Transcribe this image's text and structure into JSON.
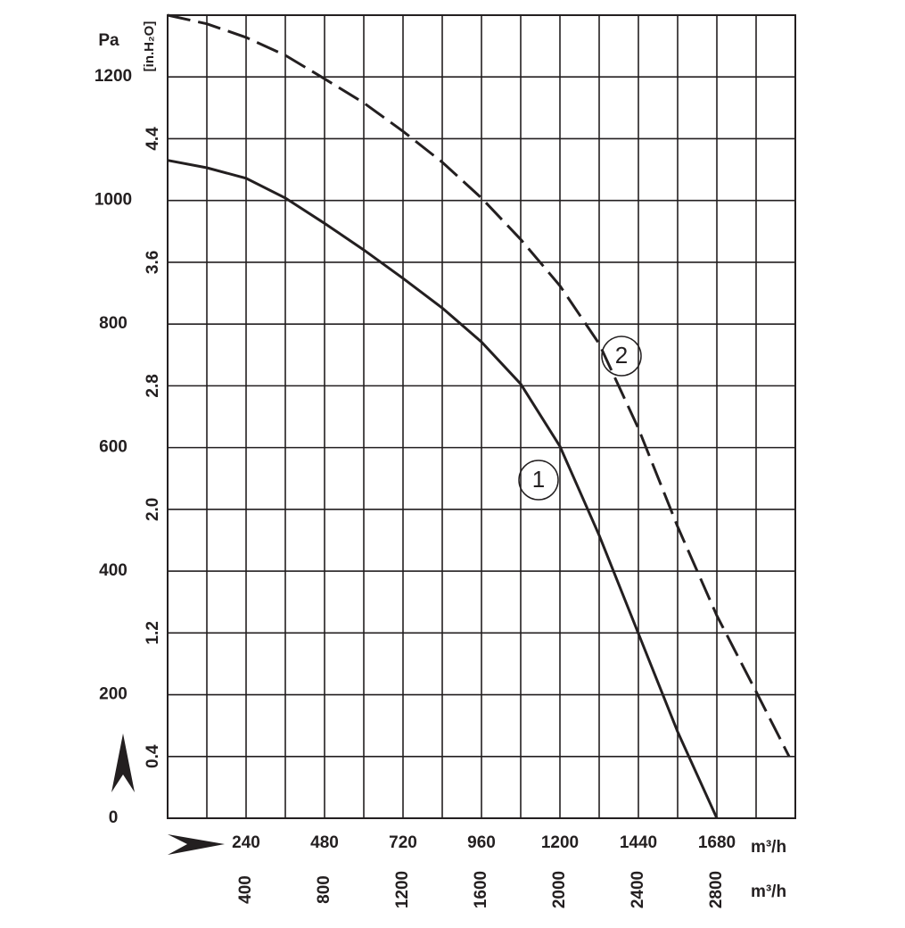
{
  "chart_data": {
    "type": "line",
    "y_unit": "Pa",
    "y2_unit": "[in.H₂O]",
    "x_unit": "m³/h",
    "x2_unit": "m³/h",
    "xlim": [
      0,
      1920
    ],
    "xticks": [
      240,
      480,
      720,
      960,
      1200,
      1440,
      1680
    ],
    "x2lim": [
      0,
      3200
    ],
    "x2ticks": [
      400,
      800,
      1200,
      1600,
      2000,
      2400,
      2800
    ],
    "xgrid": [
      0,
      120,
      240,
      360,
      480,
      600,
      720,
      840,
      960,
      1080,
      1200,
      1320,
      1440,
      1560,
      1680,
      1800,
      1920
    ],
    "ylim": [
      0,
      1300
    ],
    "yticks": [
      0,
      200,
      400,
      600,
      800,
      1000,
      1200
    ],
    "ygrid": [
      0,
      100,
      200,
      300,
      400,
      500,
      600,
      700,
      800,
      900,
      1000,
      1100,
      1200,
      1300
    ],
    "y2lim": [
      0,
      5.2
    ],
    "y2ticks": [
      0.4,
      1.2,
      {
        "value": 2,
        "label": "2.0"
      },
      2.8,
      3.6,
      4.4
    ],
    "grid": true,
    "x": [
      0,
      120,
      240,
      360,
      480,
      600,
      720,
      840,
      960,
      1080,
      1200,
      1320,
      1440,
      1560,
      1680,
      1800,
      1901
    ],
    "series": [
      {
        "name": "1",
        "color": "#231f20",
        "style": "solid",
        "values": [
          1065,
          1053,
          1036,
          1004,
          963,
          920,
          874,
          826,
          771,
          703,
          602,
          458,
          299,
          140,
          0,
          null,
          null
        ]
      },
      {
        "name": "2",
        "color": "#231f20",
        "style": "dashed",
        "values": [
          1300,
          1286,
          1264,
          1235,
          1197,
          1158,
          1112,
          1062,
          1004,
          937,
          862,
          768,
          631,
          472,
          328,
          205,
          100
        ]
      }
    ]
  }
}
